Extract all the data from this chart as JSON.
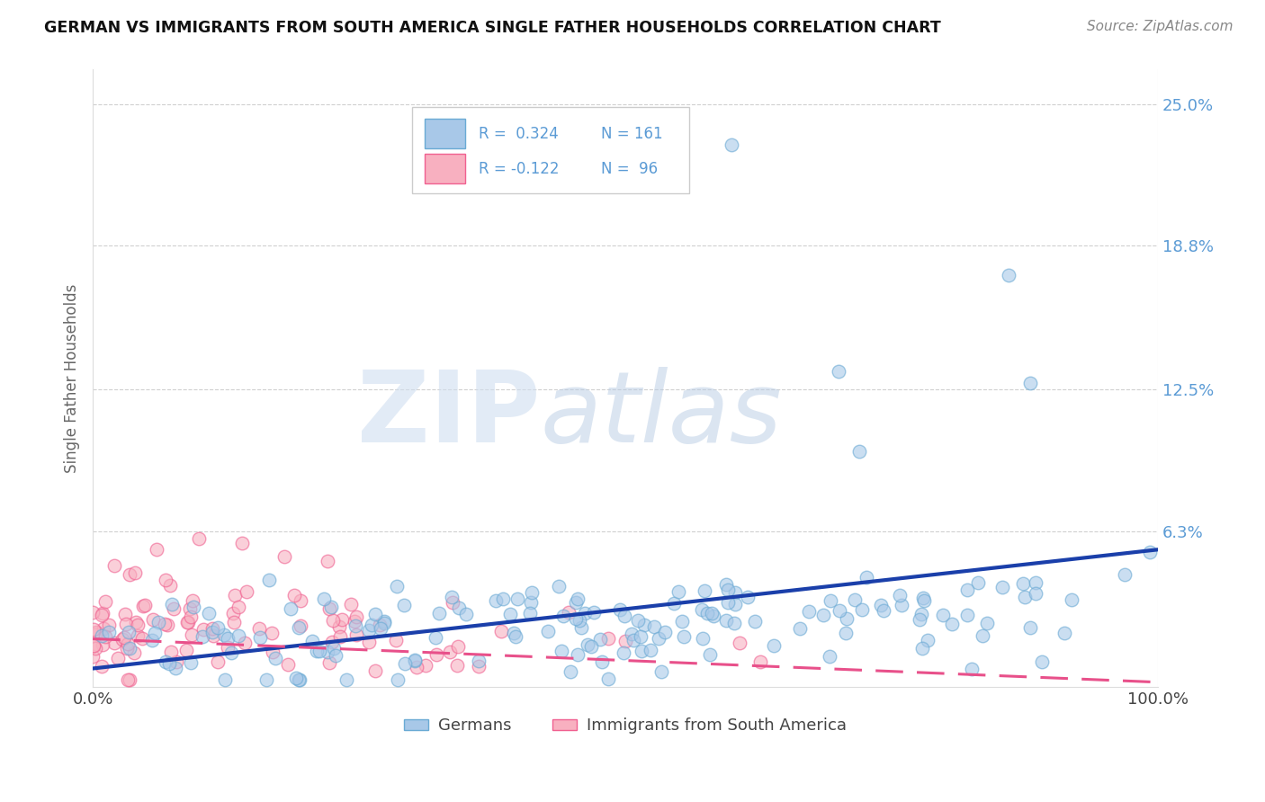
{
  "title": "GERMAN VS IMMIGRANTS FROM SOUTH AMERICA SINGLE FATHER HOUSEHOLDS CORRELATION CHART",
  "source": "Source: ZipAtlas.com",
  "ylabel": "Single Father Households",
  "xlim": [
    0,
    1.0
  ],
  "ylim": [
    -0.005,
    0.265
  ],
  "xticks": [
    0.0,
    1.0
  ],
  "xticklabels": [
    "0.0%",
    "100.0%"
  ],
  "yticks": [
    0.063,
    0.125,
    0.188,
    0.25
  ],
  "yticklabels": [
    "6.3%",
    "12.5%",
    "18.8%",
    "25.0%"
  ],
  "blue_color": "#a8c8e8",
  "blue_edge_color": "#6aaad4",
  "pink_color": "#f8b0c0",
  "pink_edge_color": "#f06090",
  "trend_blue": "#1a3faa",
  "trend_pink": "#e8508a",
  "legend_R_blue": "R =  0.324",
  "legend_N_blue": "N = 161",
  "legend_R_pink": "R = -0.122",
  "legend_N_pink": "N =  96",
  "legend_label_blue": "Germans",
  "legend_label_pink": "Immigrants from South America",
  "watermark_zip": "ZIP",
  "watermark_atlas": "atlas",
  "R_blue": 0.324,
  "R_pink": -0.122,
  "N_blue": 161,
  "N_pink": 96,
  "blue_seed": 12,
  "pink_seed": 55,
  "trend_blue_start_y": 0.003,
  "trend_blue_end_y": 0.055,
  "trend_pink_start_y": 0.016,
  "trend_pink_end_y": -0.003
}
